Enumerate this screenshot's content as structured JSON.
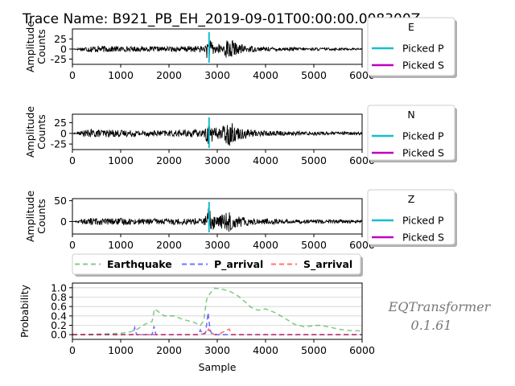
{
  "chart_data": [
    {
      "type": "line",
      "title": "Trace Name: B921_PB_EH_2019-09-01T00:00:00.008300Z",
      "ylabel": [
        "Amplitude",
        "Counts"
      ],
      "xlim": [
        0,
        6000
      ],
      "ylim": [
        -38,
        50
      ],
      "xticks": [
        0,
        1000,
        2000,
        3000,
        4000,
        5000,
        6000
      ],
      "yticks": [
        -25,
        0,
        25
      ],
      "legend": {
        "title": "E",
        "placement": "outside-right",
        "entries": [
          "Picked P",
          "Picked S"
        ]
      },
      "series": [
        {
          "name": "E",
          "color": "#000000",
          "envelope_x": [
            0,
            200,
            400,
            600,
            1000,
            1500,
            2000,
            2500,
            2750,
            2800,
            2850,
            3000,
            3150,
            3250,
            3400,
            3800,
            4500,
            5500,
            6000
          ],
          "envelope_amp": [
            0,
            5,
            9,
            8,
            7,
            6,
            6,
            8,
            8,
            30,
            22,
            10,
            18,
            32,
            13,
            6,
            4,
            3,
            2
          ]
        },
        {
          "name": "Picked P",
          "color": "#17BECF",
          "x": [
            2830
          ]
        },
        {
          "name": "Picked S",
          "color": "#BF00BF",
          "x": []
        }
      ]
    },
    {
      "type": "line",
      "ylabel": [
        "Amplitude",
        "Counts"
      ],
      "xlim": [
        0,
        6000
      ],
      "ylim": [
        -38,
        45
      ],
      "xticks": [
        0,
        1000,
        2000,
        3000,
        4000,
        5000,
        6000
      ],
      "yticks": [
        -25,
        0,
        25
      ],
      "legend": {
        "title": "N",
        "placement": "outside-right",
        "entries": [
          "Picked P",
          "Picked S"
        ]
      },
      "series": [
        {
          "name": "N",
          "color": "#000000",
          "envelope_x": [
            0,
            200,
            400,
            600,
            1000,
            1500,
            2000,
            2500,
            2750,
            2800,
            2850,
            3000,
            3150,
            3250,
            3400,
            3800,
            4500,
            5500,
            6000
          ],
          "envelope_amp": [
            0,
            6,
            10,
            9,
            8,
            7,
            7,
            9,
            9,
            32,
            22,
            12,
            20,
            30,
            15,
            8,
            5,
            4,
            3
          ]
        },
        {
          "name": "Picked P",
          "color": "#17BECF",
          "x": [
            2830
          ]
        },
        {
          "name": "Picked S",
          "color": "#BF00BF",
          "x": []
        }
      ]
    },
    {
      "type": "line",
      "ylabel": [
        "Amplitude",
        "Counts"
      ],
      "xlim": [
        0,
        6000
      ],
      "ylim": [
        -30,
        55
      ],
      "xticks": [
        0,
        1000,
        2000,
        3000,
        4000,
        5000,
        6000
      ],
      "yticks": [
        0,
        50
      ],
      "legend": {
        "title": "Z",
        "placement": "outside-right",
        "entries": [
          "Picked P",
          "Picked S"
        ]
      },
      "series": [
        {
          "name": "Z",
          "color": "#000000",
          "envelope_x": [
            0,
            200,
            400,
            600,
            1000,
            1500,
            2000,
            2500,
            2750,
            2800,
            2850,
            3000,
            3150,
            3250,
            3400,
            3800,
            4500,
            5500,
            6000
          ],
          "envelope_amp": [
            0,
            5,
            9,
            8,
            8,
            7,
            7,
            8,
            9,
            45,
            30,
            14,
            20,
            25,
            14,
            8,
            5,
            4,
            3
          ]
        },
        {
          "name": "Picked P",
          "color": "#17BECF",
          "x": [
            2830
          ]
        },
        {
          "name": "Picked S",
          "color": "#BF00BF",
          "x": []
        }
      ]
    },
    {
      "type": "line",
      "xlabel": "Sample",
      "ylabel": [
        "Probability"
      ],
      "xlim": [
        0,
        6000
      ],
      "ylim": [
        -0.1,
        1.1
      ],
      "xticks": [
        0,
        1000,
        2000,
        3000,
        4000,
        5000,
        6000
      ],
      "yticks": [
        0.0,
        0.2,
        0.4,
        0.6,
        0.8,
        1.0
      ],
      "yticklabels": [
        "0.0",
        "0.2",
        "0.4",
        "0.6",
        "0.8",
        "1.0"
      ],
      "grid": "horizontal",
      "legend": {
        "placement": "top",
        "entries": [
          "Earthquake",
          "P_arrival",
          "S_arrival"
        ]
      },
      "series": [
        {
          "name": "Earthquake",
          "color": "#2CA02C",
          "x": [
            0,
            500,
            1000,
            1200,
            1350,
            1500,
            1650,
            1700,
            1900,
            2100,
            2300,
            2500,
            2650,
            2720,
            2780,
            2850,
            2950,
            3100,
            3250,
            3400,
            3600,
            3700,
            3850,
            4000,
            4200,
            4400,
            4600,
            4800,
            5100,
            5300,
            5500,
            5700,
            6000
          ],
          "y": [
            0.0,
            0.01,
            0.03,
            0.06,
            0.12,
            0.22,
            0.28,
            0.55,
            0.4,
            0.4,
            0.32,
            0.27,
            0.2,
            0.3,
            0.75,
            0.88,
            0.99,
            0.97,
            0.93,
            0.85,
            0.68,
            0.58,
            0.52,
            0.55,
            0.47,
            0.35,
            0.22,
            0.17,
            0.2,
            0.17,
            0.12,
            0.09,
            0.08
          ]
        },
        {
          "name": "P_arrival",
          "color": "#0000FF",
          "x": [
            0,
            1250,
            1290,
            1330,
            1500,
            1650,
            1690,
            1730,
            2000,
            2600,
            2650,
            2700,
            2760,
            2810,
            2850,
            2900,
            3000,
            6000
          ],
          "y": [
            0.0,
            0.0,
            0.15,
            0.0,
            0.0,
            0.0,
            0.18,
            0.0,
            0.0,
            0.0,
            0.1,
            0.0,
            0.05,
            0.47,
            0.1,
            0.0,
            0.0,
            0.0
          ]
        },
        {
          "name": "S_arrival",
          "color": "#FF0000",
          "x": [
            0,
            2600,
            2780,
            2820,
            2860,
            2950,
            3050,
            3150,
            3250,
            3300,
            3400,
            6000
          ],
          "y": [
            0.0,
            0.0,
            0.03,
            0.12,
            0.05,
            0.0,
            0.02,
            0.07,
            0.12,
            0.0,
            0.0,
            0.0
          ]
        }
      ]
    }
  ],
  "credit": [
    "EQTransformer",
    "0.1.61"
  ]
}
